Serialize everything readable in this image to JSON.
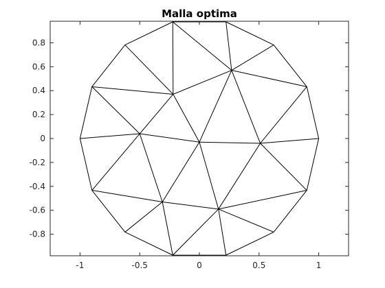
{
  "chart_data": {
    "type": "line",
    "title": "Malla optima",
    "xlabel": "",
    "ylabel": "",
    "xlim": [
      -1.25,
      1.25
    ],
    "ylim": [
      -0.98,
      0.98
    ],
    "xticks": [
      -1,
      -0.5,
      0,
      0.5,
      1
    ],
    "xtick_labels": [
      "-1",
      "-0.5",
      "0",
      "0.5",
      "1"
    ],
    "yticks": [
      -0.8,
      -0.6,
      -0.4,
      -0.2,
      0,
      0.2,
      0.4,
      0.6,
      0.8
    ],
    "ytick_labels": [
      "-0.8",
      "-0.6",
      "-0.4",
      "-0.2",
      "0",
      "0.2",
      "0.4",
      "0.6",
      "0.8"
    ],
    "grid": false,
    "nodes": [
      [
        1.0,
        0.0
      ],
      [
        0.9,
        0.433
      ],
      [
        0.623,
        0.782
      ],
      [
        0.223,
        0.975
      ],
      [
        -0.223,
        0.975
      ],
      [
        -0.623,
        0.782
      ],
      [
        -0.9,
        0.433
      ],
      [
        -1.0,
        0.0
      ],
      [
        -0.9,
        -0.433
      ],
      [
        -0.623,
        -0.782
      ],
      [
        -0.223,
        -0.975
      ],
      [
        0.223,
        -0.975
      ],
      [
        0.623,
        -0.782
      ],
      [
        0.9,
        -0.433
      ],
      [
        0.27,
        0.57
      ],
      [
        -0.22,
        0.37
      ],
      [
        -0.5,
        0.04
      ],
      [
        0.0,
        -0.03
      ],
      [
        0.51,
        -0.04
      ],
      [
        -0.31,
        -0.53
      ],
      [
        0.16,
        -0.59
      ]
    ],
    "edges": [
      [
        0,
        1
      ],
      [
        1,
        2
      ],
      [
        2,
        3
      ],
      [
        3,
        4
      ],
      [
        4,
        5
      ],
      [
        5,
        6
      ],
      [
        6,
        7
      ],
      [
        7,
        8
      ],
      [
        8,
        9
      ],
      [
        9,
        10
      ],
      [
        10,
        11
      ],
      [
        11,
        12
      ],
      [
        12,
        13
      ],
      [
        13,
        0
      ],
      [
        4,
        14
      ],
      [
        3,
        14
      ],
      [
        2,
        14
      ],
      [
        1,
        14
      ],
      [
        4,
        15
      ],
      [
        5,
        15
      ],
      [
        6,
        15
      ],
      [
        14,
        15
      ],
      [
        6,
        16
      ],
      [
        7,
        16
      ],
      [
        15,
        16
      ],
      [
        8,
        16
      ],
      [
        15,
        17
      ],
      [
        16,
        17
      ],
      [
        14,
        17
      ],
      [
        14,
        18
      ],
      [
        1,
        18
      ],
      [
        0,
        18
      ],
      [
        17,
        18
      ],
      [
        13,
        18
      ],
      [
        8,
        19
      ],
      [
        9,
        19
      ],
      [
        10,
        19
      ],
      [
        16,
        19
      ],
      [
        17,
        19
      ],
      [
        17,
        20
      ],
      [
        18,
        20
      ],
      [
        13,
        20
      ],
      [
        12,
        20
      ],
      [
        11,
        20
      ],
      [
        10,
        20
      ],
      [
        19,
        20
      ]
    ]
  }
}
